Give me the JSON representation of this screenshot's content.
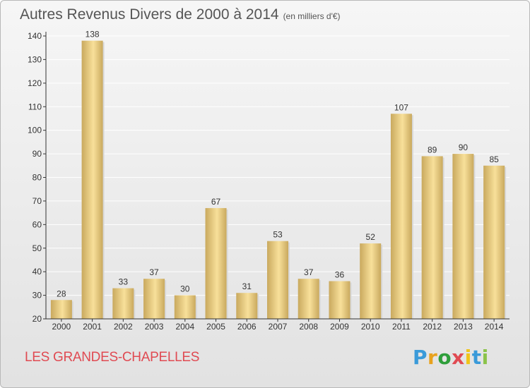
{
  "header": {
    "title": "Autres Revenus Divers de 2000 à 2014",
    "subtitle": "(en milliers d'€)"
  },
  "footer": {
    "commune": "LES GRANDES-CHAPELLES",
    "brand": [
      "P",
      "r",
      "o",
      "x",
      "i",
      "t",
      "i"
    ],
    "brand_colors": [
      "#3a9ad9",
      "#e8a21e",
      "#2e9e3a",
      "#e04a52",
      "#f0c419",
      "#3a9ad9",
      "#8bc34a"
    ]
  },
  "colors": {
    "bar_light": "#f8e09a",
    "bar_dark": "#c9a95e",
    "axis": "#333333",
    "grid": "#ffffff",
    "tick_text": "#333333"
  },
  "chart_data": {
    "type": "bar",
    "title": "Autres Revenus Divers de 2000 à 2014",
    "subtitle": "(en milliers d'€)",
    "categories": [
      "2000",
      "2001",
      "2002",
      "2003",
      "2004",
      "2005",
      "2006",
      "2007",
      "2008",
      "2009",
      "2010",
      "2011",
      "2012",
      "2013",
      "2014"
    ],
    "values": [
      28,
      138,
      33,
      37,
      30,
      67,
      31,
      53,
      37,
      36,
      52,
      107,
      89,
      90,
      85
    ],
    "ylim": [
      20,
      140
    ],
    "yticks": [
      20,
      30,
      40,
      50,
      60,
      70,
      80,
      90,
      100,
      110,
      120,
      130,
      140
    ],
    "grid": true,
    "data_labels": true
  }
}
